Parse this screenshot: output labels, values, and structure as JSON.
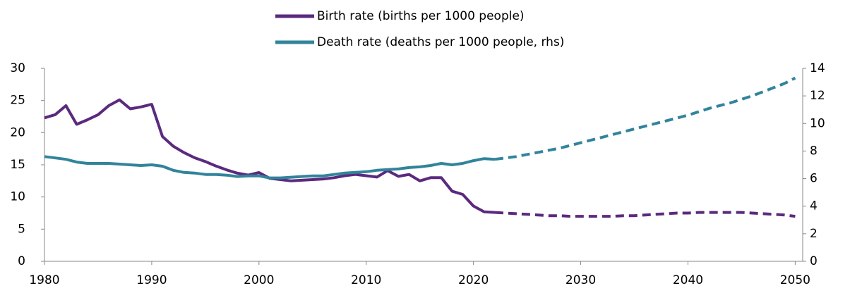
{
  "chart_data": {
    "type": "line",
    "x": [
      1980,
      1981,
      1982,
      1983,
      1984,
      1985,
      1986,
      1987,
      1988,
      1989,
      1990,
      1991,
      1992,
      1993,
      1994,
      1995,
      1996,
      1997,
      1998,
      1999,
      2000,
      2001,
      2002,
      2003,
      2004,
      2005,
      2006,
      2007,
      2008,
      2009,
      2010,
      2011,
      2012,
      2013,
      2014,
      2015,
      2016,
      2017,
      2018,
      2019,
      2020,
      2021,
      2022,
      2023,
      2024,
      2025,
      2026,
      2027,
      2028,
      2029,
      2030,
      2031,
      2032,
      2033,
      2034,
      2035,
      2036,
      2037,
      2038,
      2039,
      2040,
      2041,
      2042,
      2043,
      2044,
      2045,
      2046,
      2047,
      2048,
      2049,
      2050
    ],
    "dashed_from": 2022,
    "series": [
      {
        "name": "Birth rate (births per 1000 people)",
        "color": "#5b2a7e",
        "axis": "y",
        "values": [
          22.3,
          22.8,
          24.2,
          21.3,
          22.0,
          22.8,
          24.2,
          25.1,
          23.7,
          24.0,
          24.4,
          19.4,
          17.9,
          16.9,
          16.1,
          15.5,
          14.8,
          14.2,
          13.7,
          13.4,
          13.8,
          12.9,
          12.7,
          12.5,
          12.6,
          12.7,
          12.8,
          13.0,
          13.3,
          13.5,
          13.3,
          13.1,
          14.1,
          13.2,
          13.5,
          12.5,
          13.0,
          13.0,
          10.9,
          10.4,
          8.6,
          7.7,
          7.6,
          7.5,
          7.4,
          7.3,
          7.2,
          7.1,
          7.1,
          7.0,
          7.0,
          7.0,
          7.0,
          7.0,
          7.1,
          7.1,
          7.2,
          7.3,
          7.4,
          7.5,
          7.5,
          7.6,
          7.6,
          7.6,
          7.6,
          7.6,
          7.5,
          7.4,
          7.3,
          7.2,
          7.0
        ]
      },
      {
        "name": "Death rate (deaths per 1000 people, rhs)",
        "color": "#31849b",
        "axis": "y2",
        "values": [
          7.6,
          7.5,
          7.4,
          7.2,
          7.1,
          7.1,
          7.1,
          7.05,
          7.0,
          6.95,
          7.0,
          6.9,
          6.6,
          6.45,
          6.4,
          6.3,
          6.3,
          6.25,
          6.15,
          6.2,
          6.2,
          6.05,
          6.05,
          6.1,
          6.15,
          6.2,
          6.2,
          6.3,
          6.4,
          6.45,
          6.5,
          6.6,
          6.65,
          6.7,
          6.8,
          6.85,
          6.95,
          7.1,
          7.0,
          7.1,
          7.3,
          7.45,
          7.4,
          7.5,
          7.6,
          7.75,
          7.9,
          8.05,
          8.2,
          8.4,
          8.6,
          8.8,
          9.0,
          9.2,
          9.4,
          9.6,
          9.8,
          10.0,
          10.2,
          10.4,
          10.6,
          10.85,
          11.1,
          11.3,
          11.5,
          11.75,
          12.0,
          12.3,
          12.6,
          12.9,
          13.3
        ]
      }
    ],
    "xlim": [
      1980,
      2050.7
    ],
    "xticks": [
      1980,
      1990,
      2000,
      2010,
      2020,
      2030,
      2040,
      2050
    ],
    "ylim": [
      0,
      30
    ],
    "yticks": [
      0,
      5,
      10,
      15,
      20,
      25,
      30
    ],
    "y2lim": [
      0,
      14
    ],
    "y2ticks": [
      0,
      2,
      4,
      6,
      8,
      10,
      12,
      14
    ],
    "legend": "top"
  }
}
